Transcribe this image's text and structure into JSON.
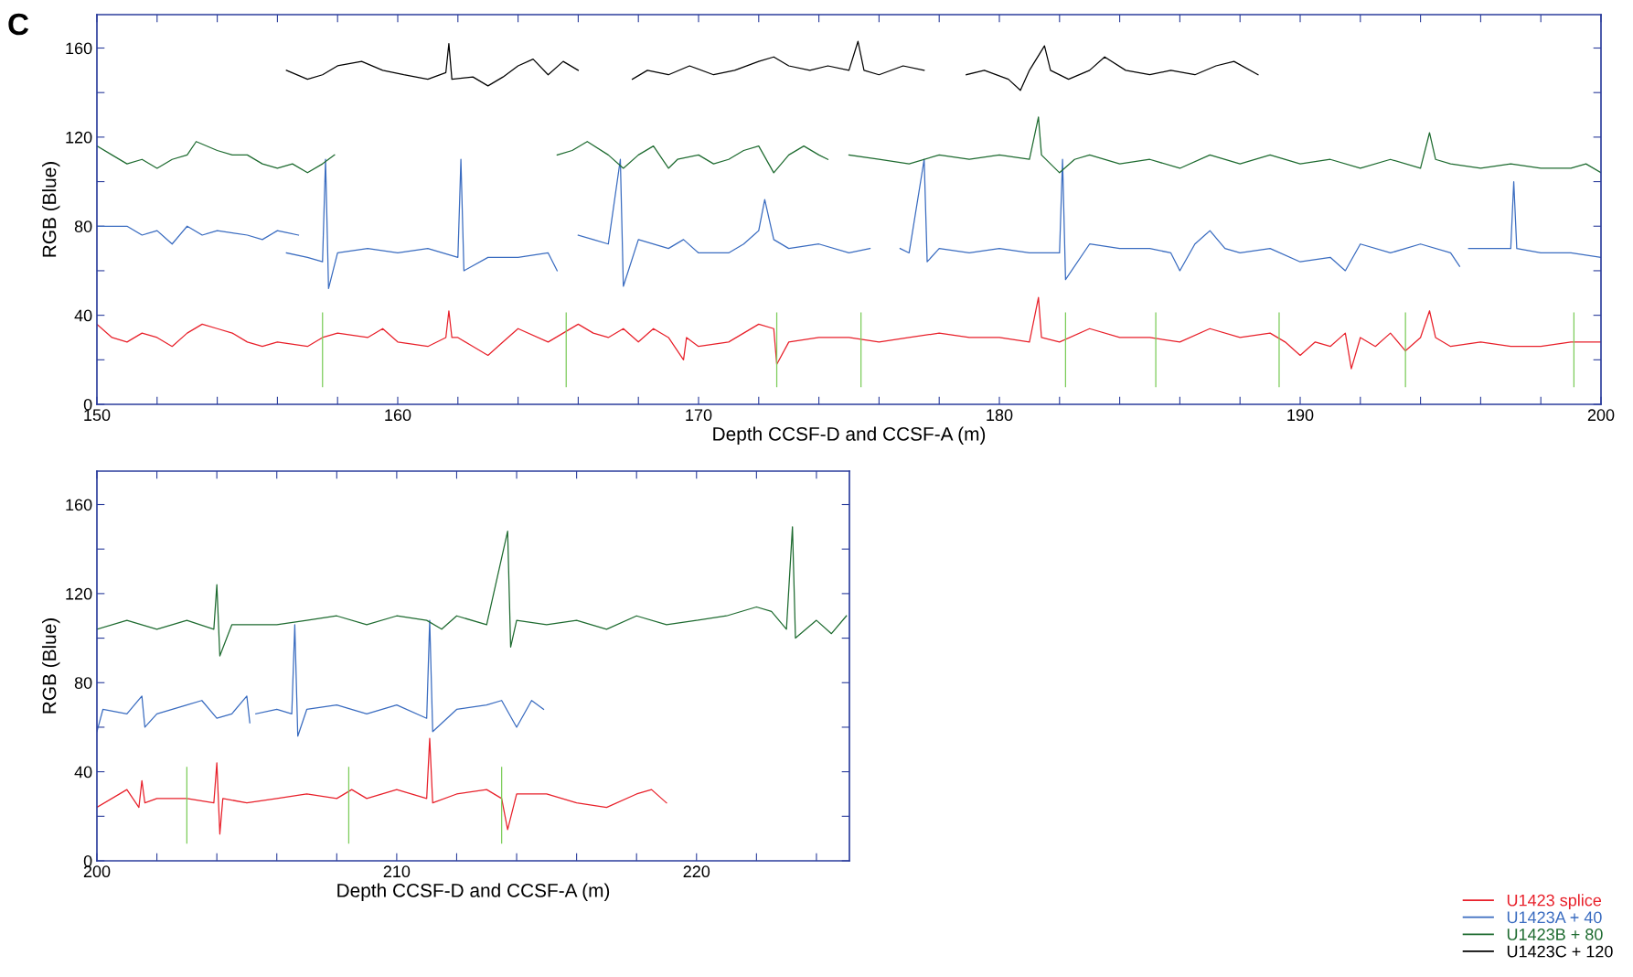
{
  "chart_data": [
    {
      "type": "line",
      "xlabel": "Depth CCSF-D and CCSF-A (m)",
      "ylabel": "RGB (Blue)",
      "annotations": [
        "C"
      ],
      "xlim": [
        150,
        200
      ],
      "ylim": [
        0,
        175
      ],
      "xticks": [
        150,
        {
          "value": 152,
          "label": null
        },
        {
          "value": 154,
          "label": null
        },
        {
          "value": 156,
          "label": null
        },
        {
          "value": 158,
          "label": null
        },
        160,
        {
          "value": 162,
          "label": null
        },
        {
          "value": 164,
          "label": null
        },
        {
          "value": 166,
          "label": null
        },
        {
          "value": 168,
          "label": null
        },
        170,
        {
          "value": 172,
          "label": null
        },
        {
          "value": 174,
          "label": null
        },
        {
          "value": 176,
          "label": null
        },
        {
          "value": 178,
          "label": null
        },
        180,
        {
          "value": 182,
          "label": null
        },
        {
          "value": 184,
          "label": null
        },
        {
          "value": 186,
          "label": null
        },
        {
          "value": 188,
          "label": null
        },
        190,
        {
          "value": 192,
          "label": null
        },
        {
          "value": 194,
          "label": null
        },
        {
          "value": 196,
          "label": null
        },
        {
          "value": 198,
          "label": null
        },
        200
      ],
      "yticks": [
        0,
        {
          "value": 20,
          "label": null
        },
        40,
        {
          "value": 60,
          "label": null
        },
        80,
        {
          "value": 100,
          "label": null
        },
        120,
        {
          "value": 140,
          "label": null
        },
        160
      ],
      "grid": false,
      "legend": "bottom right",
      "series": [
        {
          "name": "U1423 splice",
          "color": "#e8202a",
          "x": [
            150,
            150.5,
            151,
            151.5,
            152,
            152.5,
            153,
            153.5,
            154,
            154.5,
            155,
            155.5,
            156,
            157,
            157.5,
            158,
            159,
            159.5,
            160,
            161,
            161.6,
            161.7,
            161.8,
            162,
            162.5,
            163,
            163.5,
            164,
            165,
            165.5,
            166,
            166.5,
            167,
            167.5,
            168,
            168.5,
            169,
            169.5,
            169.6,
            170,
            171,
            171.5,
            172,
            172.5,
            172.6,
            173,
            174,
            175,
            176,
            177,
            178,
            179,
            180,
            181,
            181.3,
            181.4,
            182,
            183,
            184,
            185,
            186,
            187,
            188,
            189,
            189.5,
            190,
            190.5,
            191,
            191.5,
            191.7,
            192,
            192.5,
            193,
            193.5,
            194,
            194.3,
            194.5,
            195,
            196,
            197,
            198,
            199,
            200
          ],
          "values": [
            36,
            30,
            28,
            32,
            30,
            26,
            32,
            36,
            34,
            32,
            28,
            26,
            28,
            26,
            30,
            32,
            30,
            34,
            28,
            26,
            30,
            42,
            30,
            30,
            26,
            22,
            28,
            34,
            28,
            32,
            36,
            32,
            30,
            34,
            28,
            34,
            30,
            20,
            30,
            26,
            28,
            32,
            36,
            34,
            18,
            28,
            30,
            30,
            28,
            30,
            32,
            30,
            30,
            28,
            48,
            30,
            28,
            34,
            30,
            30,
            28,
            34,
            30,
            32,
            28,
            22,
            28,
            26,
            32,
            16,
            30,
            26,
            32,
            24,
            30,
            42,
            30,
            26,
            28,
            26,
            26,
            28,
            28
          ]
        },
        {
          "name": "U1423A + 40",
          "color": "#3a6cc0",
          "x": [
            150,
            151,
            151.5,
            152,
            152.5,
            153,
            153.5,
            154,
            155,
            155.5,
            156,
            156.7,
            null,
            156.3,
            157,
            157.5,
            157.6,
            157.7,
            158,
            159,
            160,
            161,
            162,
            162.1,
            162.2,
            163,
            164,
            165,
            165.3,
            null,
            166,
            166.5,
            167,
            167.4,
            167.5,
            168,
            169,
            169.5,
            170,
            171,
            171.5,
            172,
            172.2,
            172.5,
            173,
            174,
            175,
            175.7,
            null,
            176.7,
            177,
            177.5,
            177.6,
            178,
            179,
            180,
            181,
            182,
            182.1,
            182.2,
            183,
            184,
            185,
            185.7,
            186,
            186.5,
            187,
            187.5,
            188,
            189,
            190,
            191,
            191.5,
            192,
            193,
            194,
            195,
            195.3,
            null,
            195.6,
            196.5,
            197,
            197.1,
            197.2,
            198,
            199,
            200
          ],
          "values": [
            80,
            80,
            76,
            78,
            72,
            80,
            76,
            78,
            76,
            74,
            78,
            76,
            null,
            68,
            66,
            64,
            110,
            52,
            68,
            70,
            68,
            70,
            66,
            110,
            60,
            66,
            66,
            68,
            60,
            null,
            76,
            74,
            72,
            110,
            53,
            74,
            70,
            74,
            68,
            68,
            72,
            78,
            92,
            74,
            70,
            72,
            68,
            70,
            null,
            70,
            68,
            110,
            64,
            70,
            68,
            70,
            68,
            68,
            110,
            56,
            72,
            70,
            70,
            68,
            60,
            72,
            78,
            70,
            68,
            70,
            64,
            66,
            60,
            72,
            68,
            72,
            68,
            62,
            null,
            70,
            70,
            70,
            100,
            70,
            68,
            68,
            66
          ]
        },
        {
          "name": "U1423B + 80",
          "color": "#1e6b30",
          "x": [
            150,
            150.5,
            151,
            151.5,
            152,
            152.5,
            153,
            153.3,
            154,
            154.5,
            155,
            155.5,
            156,
            156.5,
            157,
            157.5,
            157.9,
            null,
            165.3,
            165.8,
            166.3,
            167,
            167.5,
            168,
            168.5,
            169,
            169.3,
            170,
            170.5,
            171,
            171.5,
            172,
            172.5,
            173,
            173.5,
            174,
            174.3,
            null,
            175,
            176,
            177,
            178,
            179,
            180,
            181,
            181.3,
            181.4,
            182,
            182.5,
            183,
            184,
            185,
            186,
            187,
            188,
            189,
            190,
            191,
            192,
            193,
            194,
            194.3,
            194.5,
            195,
            196,
            197,
            198,
            199,
            199.5,
            200
          ],
          "values": [
            116,
            112,
            108,
            110,
            106,
            110,
            112,
            118,
            114,
            112,
            112,
            108,
            106,
            108,
            104,
            108,
            112,
            null,
            112,
            114,
            118,
            112,
            106,
            112,
            116,
            106,
            110,
            112,
            108,
            110,
            114,
            116,
            104,
            112,
            116,
            112,
            110,
            null,
            112,
            110,
            108,
            112,
            110,
            112,
            110,
            129,
            112,
            104,
            110,
            112,
            108,
            110,
            106,
            112,
            108,
            112,
            108,
            110,
            106,
            110,
            106,
            122,
            110,
            108,
            106,
            108,
            106,
            106,
            108,
            104
          ]
        },
        {
          "name": "U1423C + 120",
          "color": "#000000",
          "x": [
            156.3,
            157,
            157.5,
            158,
            158.8,
            159.5,
            160.2,
            161,
            161.6,
            161.7,
            161.8,
            162.5,
            163,
            163.5,
            164,
            164.5,
            165,
            165.5,
            166,
            null,
            167.8,
            168.3,
            169,
            169.7,
            170.5,
            171.2,
            172,
            172.5,
            173,
            173.7,
            174.3,
            175,
            175.3,
            175.5,
            176,
            176.8,
            177.5,
            null,
            178.9,
            179.5,
            180.3,
            180.7,
            181,
            181.5,
            181.7,
            182.3,
            183,
            183.5,
            184.2,
            185,
            185.7,
            186.5,
            187.2,
            187.8,
            188.6
          ],
          "values": [
            150,
            146,
            148,
            152,
            154,
            150,
            148,
            146,
            149,
            162,
            146,
            147,
            143,
            147,
            152,
            155,
            148,
            154,
            150,
            null,
            146,
            150,
            148,
            152,
            148,
            150,
            154,
            156,
            152,
            150,
            152,
            150,
            163,
            150,
            148,
            152,
            150,
            null,
            148,
            150,
            146,
            141,
            150,
            161,
            150,
            146,
            150,
            156,
            150,
            148,
            150,
            148,
            152,
            154,
            148
          ]
        },
        {
          "color": "#7ccc5a",
          "x": [
            157.5,
            157.5,
            null,
            165.6,
            165.6,
            null,
            172.6,
            172.6,
            null,
            175.4,
            175.4,
            null,
            182.2,
            182.2,
            null,
            185.2,
            185.2,
            null,
            189.3,
            189.3,
            null,
            193.5,
            193.5,
            null,
            199.1,
            199.1
          ],
          "values": [
            8,
            41,
            null,
            8,
            41,
            null,
            8,
            41,
            null,
            8,
            41,
            null,
            8,
            41,
            null,
            8,
            41,
            null,
            8,
            41,
            null,
            8,
            41,
            null,
            8,
            41
          ]
        }
      ]
    },
    {
      "type": "line",
      "xlabel": "Depth CCSF-D and CCSF-A (m)",
      "ylabel": "RGB (Blue)",
      "xlim": [
        200,
        225.1
      ],
      "ylim": [
        0,
        175
      ],
      "xticks": [
        200,
        {
          "value": 202,
          "label": null
        },
        {
          "value": 204,
          "label": null
        },
        {
          "value": 206,
          "label": null
        },
        {
          "value": 208,
          "label": null
        },
        210,
        {
          "value": 212,
          "label": null
        },
        {
          "value": 214,
          "label": null
        },
        {
          "value": 216,
          "label": null
        },
        {
          "value": 218,
          "label": null
        },
        220,
        {
          "value": 222,
          "label": null
        },
        {
          "value": 224,
          "label": null
        }
      ],
      "yticks": [
        0,
        {
          "value": 20,
          "label": null
        },
        40,
        {
          "value": 60,
          "label": null
        },
        80,
        {
          "value": 100,
          "label": null
        },
        120,
        {
          "value": 140,
          "label": null
        },
        160
      ],
      "grid": false,
      "series": [
        {
          "color": "#e8202a",
          "x": [
            200,
            201,
            201.4,
            201.5,
            201.6,
            202,
            203,
            203.9,
            204,
            204.1,
            204.2,
            205,
            206,
            207,
            208,
            208.5,
            209,
            210,
            211,
            211.1,
            211.2,
            212,
            213,
            213.5,
            213.7,
            214,
            215,
            216,
            217,
            218,
            218.5,
            219
          ],
          "values": [
            24,
            32,
            24,
            36,
            26,
            28,
            28,
            26,
            44,
            12,
            28,
            26,
            28,
            30,
            28,
            32,
            28,
            32,
            28,
            55,
            26,
            30,
            32,
            28,
            14,
            30,
            30,
            26,
            24,
            30,
            32,
            26
          ]
        },
        {
          "color": "#3a6cc0",
          "x": [
            200,
            200.2,
            201,
            201.5,
            201.6,
            202,
            203,
            203.5,
            204,
            204.5,
            205,
            205.1,
            null,
            205.3,
            206,
            206.5,
            206.6,
            206.7,
            207,
            208,
            209,
            210,
            211,
            211.1,
            211.2,
            212,
            213,
            213.5,
            214,
            214.5,
            214.9
          ],
          "values": [
            58,
            68,
            66,
            74,
            60,
            66,
            70,
            72,
            64,
            66,
            74,
            62,
            null,
            66,
            68,
            66,
            106,
            56,
            68,
            70,
            66,
            70,
            64,
            108,
            58,
            68,
            70,
            72,
            60,
            72,
            68
          ]
        },
        {
          "color": "#1e6b30",
          "x": [
            200,
            201,
            202,
            203,
            203.9,
            204,
            204.1,
            204.5,
            206,
            207,
            208,
            209,
            210,
            211,
            211.5,
            212,
            213,
            213.7,
            213.8,
            214,
            215,
            216,
            217,
            218,
            219,
            220,
            221,
            222,
            222.5,
            223,
            223.2,
            223.3,
            224,
            224.5,
            225
          ],
          "values": [
            104,
            108,
            104,
            108,
            104,
            124,
            92,
            106,
            106,
            108,
            110,
            106,
            110,
            108,
            104,
            110,
            106,
            148,
            96,
            108,
            106,
            108,
            104,
            110,
            106,
            108,
            110,
            114,
            112,
            104,
            150,
            100,
            108,
            102,
            110
          ]
        },
        {
          "color": "#7ccc5a",
          "x": [
            203.0,
            203.0,
            null,
            208.4,
            208.4,
            null,
            213.5,
            213.5
          ],
          "values": [
            8,
            42,
            null,
            8,
            42,
            null,
            8,
            42
          ]
        }
      ]
    }
  ]
}
